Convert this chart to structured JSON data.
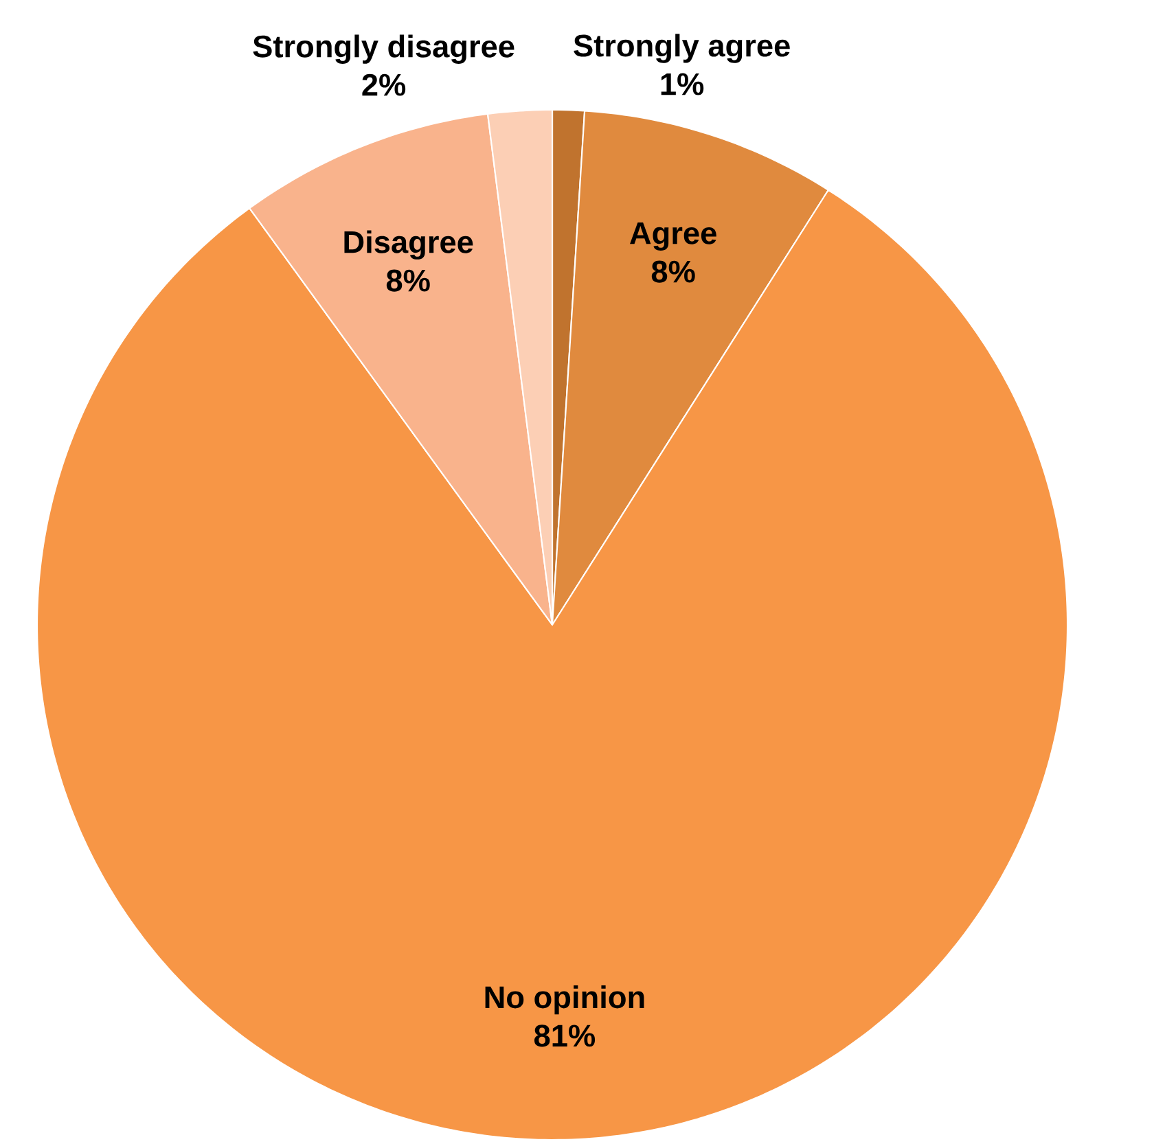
{
  "chart_data": {
    "type": "pie",
    "categories": [
      "Strongly agree",
      "Agree",
      "No opinion",
      "Disagree",
      "Strongly disagree"
    ],
    "values": [
      1,
      8,
      81,
      8,
      2
    ],
    "value_labels": [
      "1%",
      "8%",
      "81%",
      "8%",
      "2%"
    ],
    "colors": [
      "#c0732e",
      "#e08a3e",
      "#f79646",
      "#f9b38c",
      "#fccfb5"
    ]
  }
}
